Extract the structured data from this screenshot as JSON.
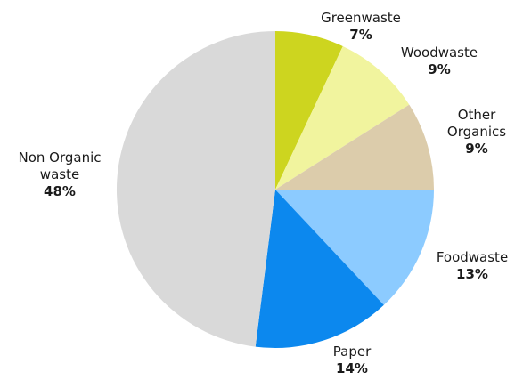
{
  "chart_data": {
    "type": "pie",
    "title": "",
    "start_angle_deg": 0,
    "direction": "clockwise",
    "slices": [
      {
        "label": [
          "Greenwaste"
        ],
        "percent_label": "7%",
        "value": 7,
        "color": "#cdd51f"
      },
      {
        "label": [
          "Woodwaste"
        ],
        "percent_label": "9%",
        "value": 9,
        "color": "#f1f49e"
      },
      {
        "label": [
          "Other",
          "Organics"
        ],
        "percent_label": "9%",
        "value": 9,
        "color": "#dcccab"
      },
      {
        "label": [
          "Foodwaste"
        ],
        "percent_label": "13%",
        "value": 13,
        "color": "#8ccbff"
      },
      {
        "label": [
          "Paper"
        ],
        "percent_label": "14%",
        "value": 14,
        "color": "#0c88ee"
      },
      {
        "label": [
          "Non Organic",
          "waste"
        ],
        "percent_label": "48%",
        "value": 48,
        "color": "#d9d9d9"
      }
    ]
  }
}
